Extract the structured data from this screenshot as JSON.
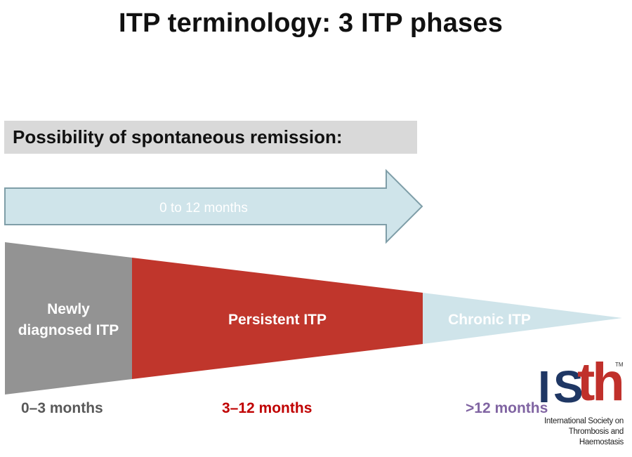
{
  "title": "ITP terminology: 3 ITP phases",
  "remission": {
    "label": "Possibility of spontaneous remission:",
    "arrow_label": "0 to 12 months"
  },
  "phases": [
    {
      "name": "Newly\ndiagnosed ITP",
      "duration": "0–3 months",
      "fill_color": "#939393",
      "duration_color": "#595959"
    },
    {
      "name": "Persistent ITP",
      "duration": "3–12 months",
      "fill_color": "#c0362c",
      "duration_color": "#c00000"
    },
    {
      "name": "Chronic ITP",
      "duration": ">12 months",
      "fill_color": "#cfe4ea",
      "duration_color": "#8064a2"
    }
  ],
  "logo": {
    "letters": [
      "I",
      "S",
      "th"
    ],
    "trademark": "TM",
    "subtitle_line1": "International Society on",
    "subtitle_line2": "Thrombosis and Haemostasis"
  },
  "colors": {
    "arrow_fill": "#cfe4ea",
    "arrow_stroke": "#7f9ea8",
    "remission_box": "#d9d9d9",
    "logo_blue": "#1f3764",
    "logo_red": "#c0302b"
  }
}
